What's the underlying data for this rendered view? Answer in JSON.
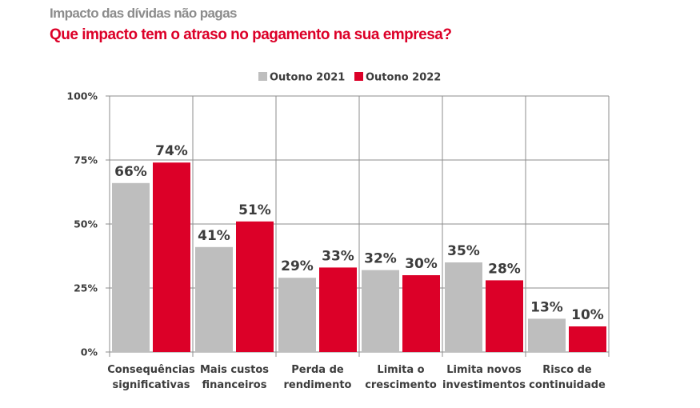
{
  "header": {
    "title": "Impacto das dívidas não pagas",
    "subtitle": "Que impacto tem o atraso no pagamento na sua empresa?"
  },
  "chart_data": {
    "type": "bar",
    "title": "Impacto das dívidas não pagas",
    "subtitle": "Que impacto tem o atraso no pagamento na sua empresa?",
    "xlabel": "",
    "ylabel": "",
    "ylim": [
      0,
      100
    ],
    "yticks": [
      0,
      25,
      50,
      75,
      100
    ],
    "ytick_labels": [
      "0%",
      "25%",
      "50%",
      "75%",
      "100%"
    ],
    "grid": true,
    "legend_position": "top-center",
    "categories": [
      [
        "Consequências",
        "significativas"
      ],
      [
        "Mais custos",
        "financeiros"
      ],
      [
        "Perda de",
        "rendimento"
      ],
      [
        "Limita o",
        "crescimento"
      ],
      [
        "Limita novos",
        "investimentos"
      ],
      [
        "Risco de",
        "continuidade"
      ]
    ],
    "series": [
      {
        "name": "Outono 2021",
        "color": "#bebebe",
        "values": [
          66,
          41,
          29,
          32,
          35,
          13
        ],
        "labels": [
          "66%",
          "41%",
          "29%",
          "32%",
          "35%",
          "13%"
        ]
      },
      {
        "name": "Outono 2022",
        "color": "#dc0028",
        "values": [
          74,
          51,
          33,
          30,
          28,
          10
        ],
        "labels": [
          "74%",
          "51%",
          "33%",
          "30%",
          "28%",
          "10%"
        ]
      }
    ]
  }
}
